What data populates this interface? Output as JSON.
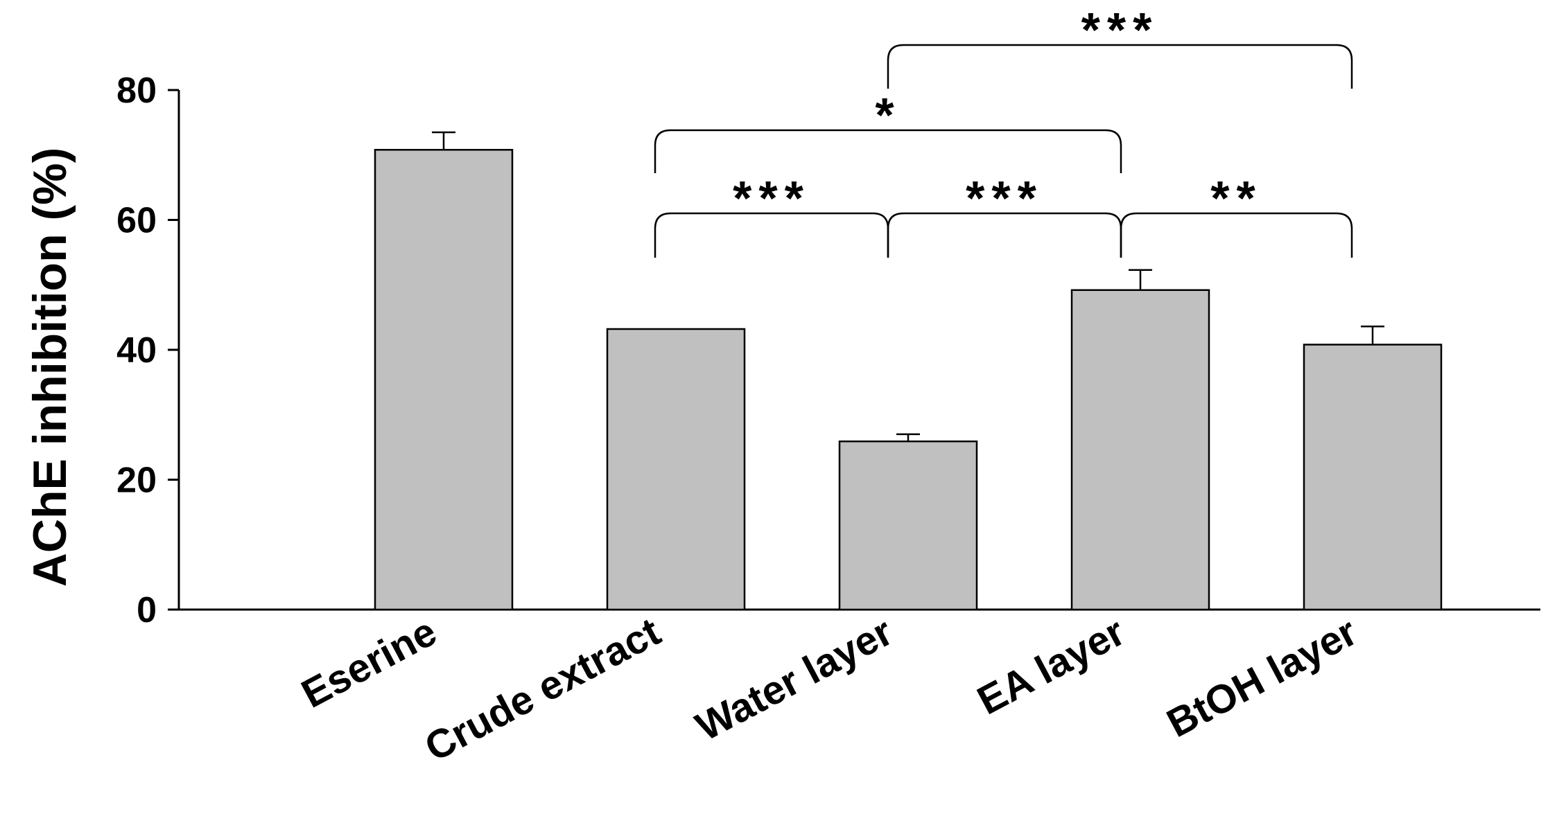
{
  "chart_data": {
    "type": "bar",
    "title": "",
    "xlabel": "",
    "ylabel": "AChE inhibition (%)",
    "ylim": [
      0,
      80
    ],
    "yticks": [
      "0",
      "20",
      "40",
      "60",
      "80"
    ],
    "categories": [
      "Eserine",
      "Crude extract",
      "Water layer",
      "EA layer",
      "BtOH layer"
    ],
    "values": [
      70.8,
      43.2,
      25.9,
      49.2,
      40.8
    ],
    "errors": [
      2.7,
      0,
      1.1,
      3.1,
      2.8
    ],
    "bar_color": "#c0c0c0",
    "significance": [
      {
        "from": 1,
        "to": 2,
        "label": "***"
      },
      {
        "from": 2,
        "to": 3,
        "label": "***"
      },
      {
        "from": 3,
        "to": 4,
        "label": "**"
      },
      {
        "from": 1,
        "to": 3,
        "label": "*"
      },
      {
        "from": 2,
        "to": 4,
        "label": "***"
      }
    ]
  }
}
